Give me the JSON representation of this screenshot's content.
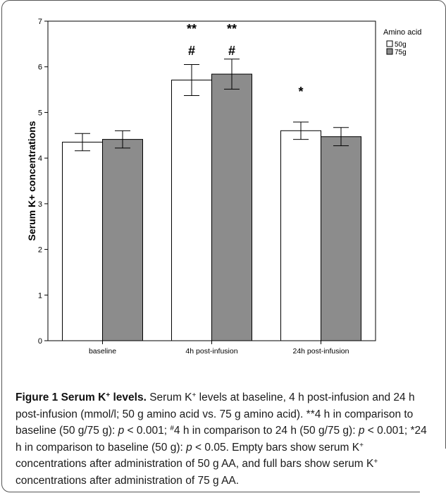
{
  "chart_data": {
    "type": "bar",
    "categories": [
      "baseline",
      "4h post-infusion",
      "24h post-infusion"
    ],
    "series": [
      {
        "name": "50g",
        "color": "#ffffff",
        "values": [
          4.35,
          5.71,
          4.6
        ],
        "errors": [
          0.19,
          0.34,
          0.19
        ]
      },
      {
        "name": "75g",
        "color": "#8c8c8c",
        "values": [
          4.41,
          5.84,
          4.47
        ],
        "errors": [
          0.19,
          0.33,
          0.2
        ]
      }
    ],
    "ylabel": "Serum K+ concentrations",
    "xlabel": "",
    "ylim": [
      0,
      7
    ],
    "yticks": [
      "0",
      "1",
      "2",
      "3",
      "4",
      "5",
      "6",
      "7"
    ],
    "legend_title": "Amino acid",
    "legend_position": "top-right",
    "grid": false,
    "annotations": [
      {
        "category": 1,
        "series": 0,
        "line1": "**",
        "line2": "#"
      },
      {
        "category": 1,
        "series": 1,
        "line1": "**",
        "line2": "#"
      },
      {
        "category": 2,
        "series": 0,
        "line1": "*",
        "line2": ""
      }
    ]
  },
  "caption": {
    "label": "Figure 1 Serum K",
    "label_sup": "+",
    "label_end": " levels.",
    "p1": " Serum K",
    "p1_sup": "+",
    "p1_rest": " levels at baseline, 4 h post-infusion and 24 h post-infusion (mmol/l; 50 g amino acid vs. 75 g amino acid). **4 h in comparison to baseline (50 g/75 g): ",
    "p_sym": "p",
    "p1_val": " < 0.001; ",
    "p2_sup": "#",
    "p2": "4 h in comparison to 24 h (50 g/75 g): ",
    "p2_val": " < 0.001; *24 h in comparison to baseline (50 g): ",
    "p3_val": " < 0.05. Empty bars show serum K",
    "p3_sup": "+",
    "p4": " concentrations after administration of 50 g AA, and full bars show serum K",
    "p4_sup": "+",
    "p5": " concentrations after administration of 75 g AA."
  }
}
